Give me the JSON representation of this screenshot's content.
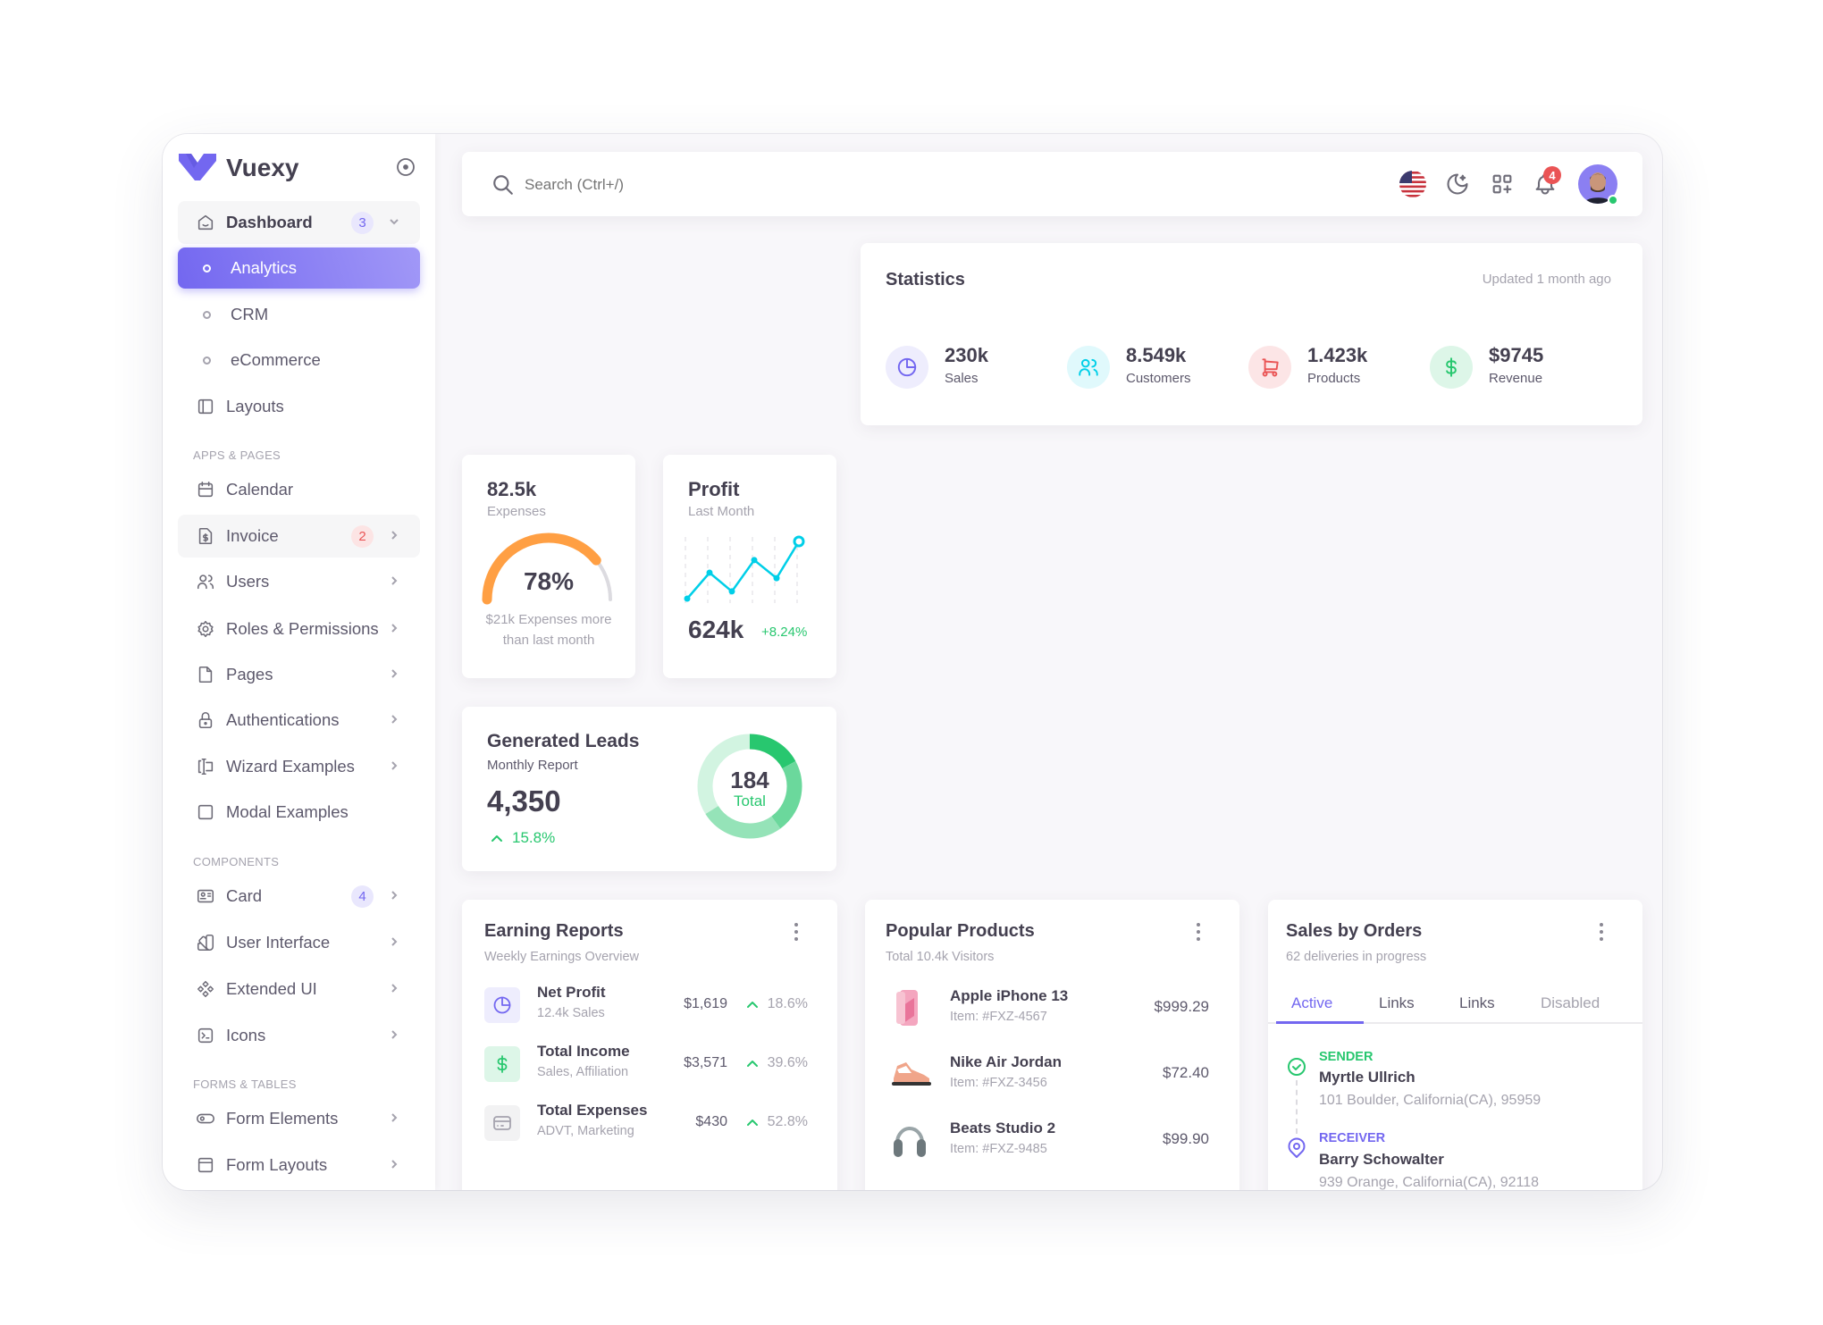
{
  "brand": {
    "name": "Vuexy",
    "color": "#7367f0"
  },
  "sidebar": {
    "dashboard": {
      "label": "Dashboard",
      "badge": "3"
    },
    "sub_items": [
      {
        "label": "Analytics",
        "active": true
      },
      {
        "label": "CRM"
      },
      {
        "label": "eCommerce"
      }
    ],
    "layouts": "Layouts",
    "sections": [
      "APPS & PAGES",
      "COMPONENTS",
      "FORMS & TABLES"
    ],
    "items": [
      {
        "label": "Calendar",
        "icon": "calendar-icon"
      },
      {
        "label": "Invoice",
        "icon": "invoice-icon",
        "badge": "2"
      },
      {
        "label": "Users",
        "icon": "users-icon"
      },
      {
        "label": "Roles & Permissions",
        "icon": "settings-icon"
      },
      {
        "label": "Pages",
        "icon": "file-icon"
      },
      {
        "label": "Authentications",
        "icon": "lock-icon"
      },
      {
        "label": "Wizard Examples",
        "icon": "wizard-icon"
      },
      {
        "label": "Modal Examples",
        "icon": "square-icon"
      },
      {
        "label": "Card",
        "icon": "id-card-icon",
        "badge": "4"
      },
      {
        "label": "User Interface",
        "icon": "color-swatch-icon"
      },
      {
        "label": "Extended UI",
        "icon": "components-icon"
      },
      {
        "label": "Icons",
        "icon": "terminal-icon"
      },
      {
        "label": "Form Elements",
        "icon": "toggle-icon"
      },
      {
        "label": "Form Layouts",
        "icon": "layout-navbar-icon"
      }
    ]
  },
  "header": {
    "search_placeholder": "Search (Ctrl+/)",
    "notifications": "4",
    "icons": [
      "flag-us-icon",
      "moon-icon",
      "apps-icon",
      "bell-icon",
      "avatar"
    ]
  },
  "statistics": {
    "title": "Statistics",
    "updated": "Updated 1 month ago",
    "items": [
      {
        "value": "230k",
        "label": "Sales",
        "icon": "pie-chart-icon",
        "color": "#7367f0"
      },
      {
        "value": "8.549k",
        "label": "Customers",
        "icon": "users-icon",
        "color": "#00cfe8"
      },
      {
        "value": "1.423k",
        "label": "Products",
        "icon": "cart-icon",
        "color": "#ea5455"
      },
      {
        "value": "$9745",
        "label": "Revenue",
        "icon": "dollar-icon",
        "color": "#28c76f"
      }
    ]
  },
  "expenses": {
    "value": "82.5k",
    "label": "Expenses",
    "percent": 78,
    "percent_label": "78%",
    "note1": "$21k Expenses more",
    "note2": "than last month",
    "color": "#ff9f43"
  },
  "profit": {
    "title": "Profit",
    "subtitle": "Last Month",
    "value": "624k",
    "change": "+8.24%",
    "series": [
      5,
      48,
      17,
      69,
      39,
      100
    ],
    "color": "#00cfe8"
  },
  "leads": {
    "title": "Generated Leads",
    "subtitle": "Monthly Report",
    "value": "4,350",
    "change": "15.8%",
    "total": "184",
    "total_label": "Total",
    "segments": [
      17,
      23,
      26,
      34
    ],
    "segment_colors": [
      "#28c76f",
      "#6bd89c",
      "#95e3b8",
      "#d2f4e1"
    ]
  },
  "earning": {
    "title": "Earning Reports",
    "subtitle": "Weekly Earnings Overview",
    "rows": [
      {
        "title": "Net Profit",
        "sub": "12.4k Sales",
        "amount": "$1,619",
        "pct": "18.6%",
        "icon": "pie-chart-icon"
      },
      {
        "title": "Total Income",
        "sub": "Sales, Affiliation",
        "amount": "$3,571",
        "pct": "39.6%",
        "icon": "dollar-icon"
      },
      {
        "title": "Total Expenses",
        "sub": "ADVT, Marketing",
        "amount": "$430",
        "pct": "52.8%",
        "icon": "credit-card-icon"
      }
    ]
  },
  "products": {
    "title": "Popular Products",
    "subtitle": "Total 10.4k Visitors",
    "rows": [
      {
        "name": "Apple iPhone 13",
        "item": "Item: #FXZ-4567",
        "price": "$999.29"
      },
      {
        "name": "Nike Air Jordan",
        "item": "Item: #FXZ-3456",
        "price": "$72.40"
      },
      {
        "name": "Beats Studio 2",
        "item": "Item: #FXZ-9485",
        "price": "$99.90"
      }
    ]
  },
  "orders": {
    "title": "Sales by Orders",
    "subtitle": "62 deliveries in progress",
    "tabs": [
      "Active",
      "Links",
      "Links",
      "Disabled"
    ],
    "sender": {
      "label": "SENDER",
      "name": "Myrtle Ullrich",
      "address": "101 Boulder, California(CA), 95959"
    },
    "receiver": {
      "label": "RECEIVER",
      "name": "Barry Schowalter",
      "address": "939 Orange, California(CA), 92118"
    }
  }
}
